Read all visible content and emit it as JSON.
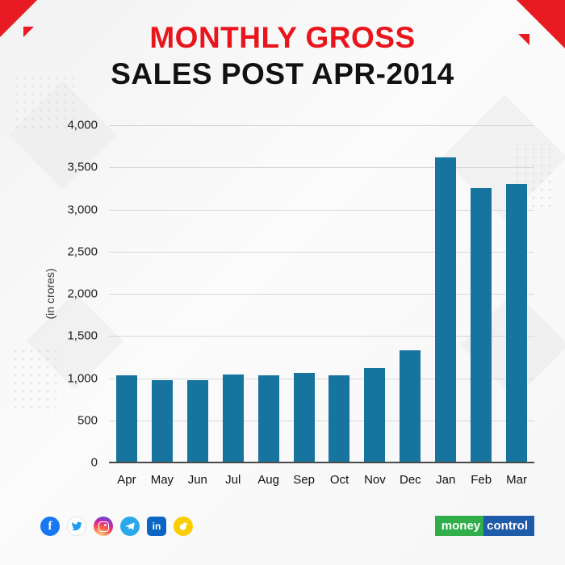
{
  "header": {
    "title_line1": "MONTHLY GROSS",
    "title_line2": "SALES POST APR-2014"
  },
  "chart_data": {
    "type": "bar",
    "title": "MONTHLY GROSS SALES POST APR-2014",
    "categories": [
      "Apr",
      "May",
      "Jun",
      "Jul",
      "Aug",
      "Sep",
      "Oct",
      "Nov",
      "Dec",
      "Jan",
      "Feb",
      "Mar"
    ],
    "values": [
      1030,
      980,
      980,
      1040,
      1030,
      1060,
      1030,
      1120,
      1330,
      3620,
      3250,
      3300
    ],
    "xlabel": "",
    "ylabel": "(in crores)",
    "ylim": [
      0,
      4000
    ],
    "ytick_step": 500,
    "ytick_labels": [
      "0",
      "500",
      "1,000",
      "1,500",
      "2,000",
      "2,500",
      "3,000",
      "3,500",
      "4,000"
    ],
    "grid": true,
    "legend": false,
    "bar_color": "#17749f"
  },
  "footer": {
    "social": [
      {
        "name": "facebook-icon",
        "label": "f",
        "bg": "#1877f2"
      },
      {
        "name": "twitter-icon",
        "bg": "#ffffff",
        "fg": "#1d9bf0"
      },
      {
        "name": "instagram-icon"
      },
      {
        "name": "telegram-icon",
        "bg": "#29a9eb"
      },
      {
        "name": "linkedin-icon",
        "label": "in",
        "bg": "#0a66c2"
      },
      {
        "name": "koo-icon",
        "bg": "#facd00"
      }
    ],
    "brand": {
      "part1": "money",
      "part2": "control",
      "part1_bg": "#2fae4a",
      "part2_bg": "#1e5ba8"
    }
  },
  "colors": {
    "accent_red": "#e8151d",
    "title_dark": "#121212"
  }
}
